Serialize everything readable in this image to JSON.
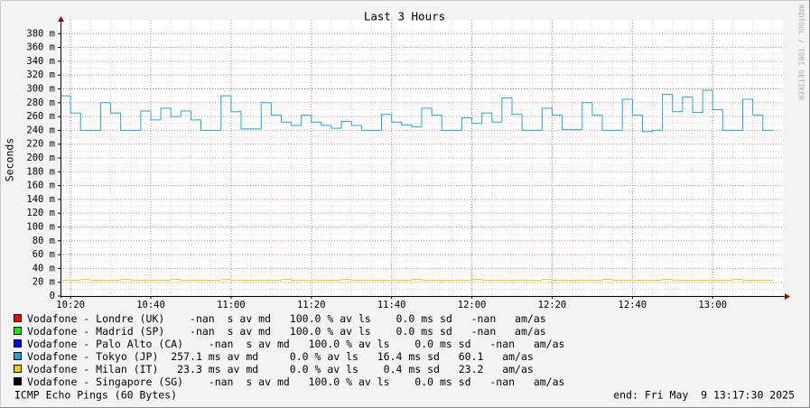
{
  "chart_data": {
    "type": "line",
    "title": "Last 3 Hours",
    "y_label": "Seconds",
    "footer_left": "ICMP Echo Pings (60 Bytes)",
    "footer_right": "end: Fri May  9 13:17:30 2025",
    "watermark": "RRDTOOL / TOBI OETIKER",
    "step": true,
    "grid": true,
    "xlim": [
      "10:17:30",
      "13:17:30"
    ],
    "xticks": [
      "10:20",
      "10:40",
      "11:00",
      "11:20",
      "11:40",
      "12:00",
      "12:20",
      "12:40",
      "13:00"
    ],
    "ylim": [
      0,
      0.4
    ],
    "yticks": [
      0,
      {
        "value": 0.02,
        "label": "20 m"
      },
      {
        "value": 0.04,
        "label": "40 m"
      },
      {
        "value": 0.06,
        "label": "60 m"
      },
      {
        "value": 0.08,
        "label": "80 m"
      },
      {
        "value": 0.1,
        "label": "100 m"
      },
      {
        "value": 0.12,
        "label": "120 m"
      },
      {
        "value": 0.14,
        "label": "140 m"
      },
      {
        "value": 0.16,
        "label": "160 m"
      },
      {
        "value": 0.18,
        "label": "180 m"
      },
      {
        "value": 0.2,
        "label": "200 m"
      },
      {
        "value": 0.22,
        "label": "220 m"
      },
      {
        "value": 0.24,
        "label": "240 m"
      },
      {
        "value": 0.26,
        "label": "260 m"
      },
      {
        "value": 0.28,
        "label": "280 m"
      },
      {
        "value": 0.3,
        "label": "300 m"
      },
      {
        "value": 0.32,
        "label": "320 m"
      },
      {
        "value": 0.34,
        "label": "340 m"
      },
      {
        "value": 0.36,
        "label": "360 m"
      },
      {
        "value": 0.38,
        "label": "380 m"
      }
    ],
    "x": [
      "10:17:30",
      "10:20:00",
      "10:22:30",
      "10:25:00",
      "10:27:30",
      "10:30:00",
      "10:32:30",
      "10:35:00",
      "10:37:30",
      "10:40:00",
      "10:42:30",
      "10:45:00",
      "10:47:30",
      "10:50:00",
      "10:52:30",
      "10:55:00",
      "10:57:30",
      "11:00:00",
      "11:02:30",
      "11:05:00",
      "11:07:30",
      "11:10:00",
      "11:12:30",
      "11:15:00",
      "11:17:30",
      "11:20:00",
      "11:22:30",
      "11:25:00",
      "11:27:30",
      "11:30:00",
      "11:32:30",
      "11:35:00",
      "11:37:30",
      "11:40:00",
      "11:42:30",
      "11:45:00",
      "11:47:30",
      "11:50:00",
      "11:52:30",
      "11:55:00",
      "11:57:30",
      "12:00:00",
      "12:02:30",
      "12:05:00",
      "12:07:30",
      "12:10:00",
      "12:12:30",
      "12:15:00",
      "12:17:30",
      "12:20:00",
      "12:22:30",
      "12:25:00",
      "12:27:30",
      "12:30:00",
      "12:32:30",
      "12:35:00",
      "12:37:30",
      "12:40:00",
      "12:42:30",
      "12:45:00",
      "12:47:30",
      "12:50:00",
      "12:52:30",
      "12:55:00",
      "12:57:30",
      "13:00:00",
      "13:02:30",
      "13:05:00",
      "13:07:30",
      "13:10:00",
      "13:12:30"
    ],
    "series": [
      {
        "name": "Vodafone - Londre (UK)",
        "stats": "    -nan  s av md   100.0 % av ls    0.0 ms sd   -nan   am/as",
        "color": "#ff0000",
        "values": [
          null,
          null,
          null,
          null,
          null,
          null,
          null,
          null,
          null,
          null,
          null,
          null,
          null,
          null,
          null,
          null,
          null,
          null,
          null,
          null,
          null,
          null,
          null,
          null,
          null,
          null,
          null,
          null,
          null,
          null,
          null,
          null,
          null,
          null,
          null,
          null,
          null,
          null,
          null,
          null,
          null,
          null,
          null,
          null,
          null,
          null,
          null,
          null,
          null,
          null,
          null,
          null,
          null,
          null,
          null,
          null,
          null,
          null,
          null,
          null,
          null,
          null,
          null,
          null,
          null,
          null,
          null,
          null,
          null,
          null,
          null
        ]
      },
      {
        "name": "Vodafone - Madrid (SP)",
        "stats": "    -nan  s av md   100.0 % av ls    0.0 ms sd   -nan   am/as",
        "color": "#00ee00",
        "values": [
          null,
          null,
          null,
          null,
          null,
          null,
          null,
          null,
          null,
          null,
          null,
          null,
          null,
          null,
          null,
          null,
          null,
          null,
          null,
          null,
          null,
          null,
          null,
          null,
          null,
          null,
          null,
          null,
          null,
          null,
          null,
          null,
          null,
          null,
          null,
          null,
          null,
          null,
          null,
          null,
          null,
          null,
          null,
          null,
          null,
          null,
          null,
          null,
          null,
          null,
          null,
          null,
          null,
          null,
          null,
          null,
          null,
          null,
          null,
          null,
          null,
          null,
          null,
          null,
          null,
          null,
          null,
          null,
          null,
          null,
          null
        ]
      },
      {
        "name": "Vodafone - Palo Alto (CA)",
        "stats": "    -nan  s av md   100.0 % av ls    0.0 ms sd   -nan   am/as",
        "color": "#0000ff",
        "values": [
          null,
          null,
          null,
          null,
          null,
          null,
          null,
          null,
          null,
          null,
          null,
          null,
          null,
          null,
          null,
          null,
          null,
          null,
          null,
          null,
          null,
          null,
          null,
          null,
          null,
          null,
          null,
          null,
          null,
          null,
          null,
          null,
          null,
          null,
          null,
          null,
          null,
          null,
          null,
          null,
          null,
          null,
          null,
          null,
          null,
          null,
          null,
          null,
          null,
          null,
          null,
          null,
          null,
          null,
          null,
          null,
          null,
          null,
          null,
          null,
          null,
          null,
          null,
          null,
          null,
          null,
          null,
          null,
          null,
          null,
          null
        ]
      },
      {
        "name": "Vodafone - Tokyo (JP)",
        "stats": "  257.1 ms av md     0.0 % av ls   16.4 ms sd   60.1   am/as",
        "color": "#1ca4dc",
        "values": [
          0.29,
          0.265,
          0.24,
          0.24,
          0.28,
          0.265,
          0.24,
          0.24,
          0.268,
          0.255,
          0.272,
          0.26,
          0.268,
          0.255,
          0.24,
          0.24,
          0.29,
          0.267,
          0.242,
          0.242,
          0.28,
          0.262,
          0.252,
          0.247,
          0.262,
          0.252,
          0.247,
          0.243,
          0.253,
          0.247,
          0.24,
          0.24,
          0.263,
          0.252,
          0.248,
          0.245,
          0.272,
          0.262,
          0.24,
          0.24,
          0.258,
          0.25,
          0.265,
          0.252,
          0.287,
          0.263,
          0.24,
          0.24,
          0.272,
          0.262,
          0.241,
          0.241,
          0.28,
          0.262,
          0.24,
          0.24,
          0.285,
          0.262,
          0.238,
          0.24,
          0.292,
          0.267,
          0.288,
          0.266,
          0.298,
          0.27,
          0.24,
          0.24,
          0.285,
          0.262,
          0.24
        ]
      },
      {
        "name": "Vodafone - Milan (IT)",
        "stats": "   23.3 ms av md     0.0 % av ls    0.4 ms sd   23.2   am/as",
        "color": "#ffc800",
        "values": [
          0.023,
          0.023,
          0.024,
          0.023,
          0.023,
          0.023,
          0.024,
          0.023,
          0.023,
          0.023,
          0.023,
          0.024,
          0.023,
          0.023,
          0.023,
          0.023,
          0.024,
          0.023,
          0.023,
          0.023,
          0.023,
          0.023,
          0.024,
          0.023,
          0.023,
          0.023,
          0.023,
          0.023,
          0.024,
          0.023,
          0.023,
          0.023,
          0.023,
          0.023,
          0.023,
          0.024,
          0.023,
          0.023,
          0.023,
          0.023,
          0.023,
          0.024,
          0.023,
          0.023,
          0.023,
          0.023,
          0.023,
          0.023,
          0.024,
          0.023,
          0.023,
          0.023,
          0.023,
          0.023,
          0.024,
          0.023,
          0.023,
          0.023,
          0.023,
          0.023,
          0.024,
          0.023,
          0.023,
          0.023,
          0.023,
          0.023,
          0.023,
          0.024,
          0.023,
          0.023,
          0.023
        ]
      },
      {
        "name": "Vodafone - Singapore (SG)",
        "stats": "    -nan  s av md   100.0 % av ls    0.0 ms sd   -nan   am/as",
        "color": "#000000",
        "values": [
          null,
          null,
          null,
          null,
          null,
          null,
          null,
          null,
          null,
          null,
          null,
          null,
          null,
          null,
          null,
          null,
          null,
          null,
          null,
          null,
          null,
          null,
          null,
          null,
          null,
          null,
          null,
          null,
          null,
          null,
          null,
          null,
          null,
          null,
          null,
          null,
          null,
          null,
          null,
          null,
          null,
          null,
          null,
          null,
          null,
          null,
          null,
          null,
          null,
          null,
          null,
          null,
          null,
          null,
          null,
          null,
          null,
          null,
          null,
          null,
          null,
          null,
          null,
          null,
          null,
          null,
          null,
          null,
          null,
          null,
          null
        ]
      }
    ]
  }
}
